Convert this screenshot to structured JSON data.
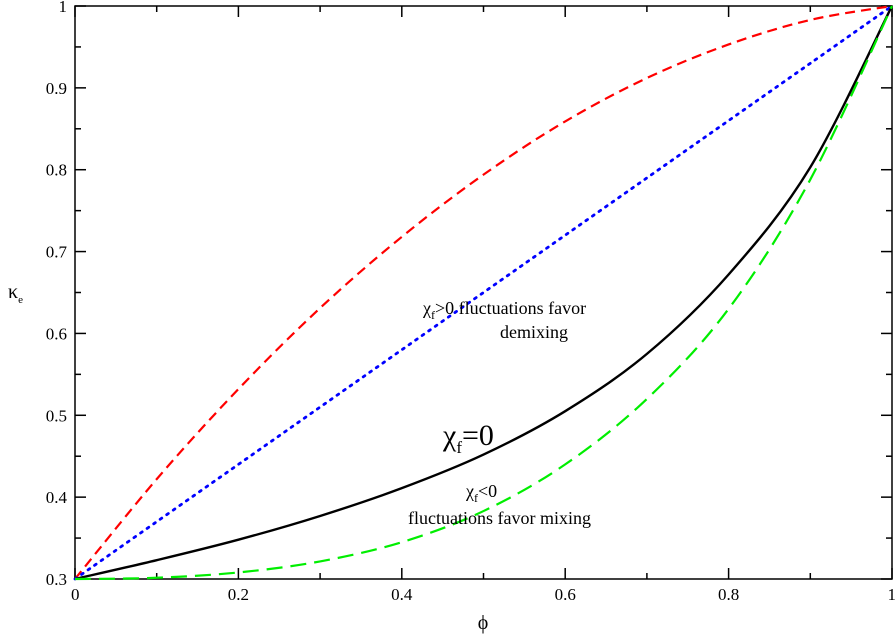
{
  "chart_data": {
    "type": "line",
    "xlabel": "ϕ",
    "ylabel_main": "κ",
    "ylabel_sub": "e",
    "xlim": [
      0,
      1
    ],
    "ylim": [
      0.3,
      1
    ],
    "xticks": [
      0,
      0.2,
      0.4,
      0.6,
      0.8,
      1
    ],
    "xtick_labels": [
      "0",
      "0.2",
      "0.4",
      "0.6",
      "0.8",
      "1"
    ],
    "yticks": [
      0.3,
      0.4,
      0.5,
      0.6,
      0.7,
      0.8,
      0.9,
      1
    ],
    "ytick_labels": [
      "0.3",
      "0.4",
      "0.5",
      "0.6",
      "0.7",
      "0.8",
      "0.9",
      "1"
    ],
    "grid": false,
    "x": [
      0,
      0.1,
      0.2,
      0.3,
      0.4,
      0.5,
      0.6,
      0.7,
      0.8,
      0.9,
      1.0
    ],
    "series": [
      {
        "color": "#ff0000",
        "dash": "dashed",
        "values": [
          0.3,
          0.422,
          0.532,
          0.631,
          0.718,
          0.794,
          0.859,
          0.912,
          0.953,
          0.983,
          1.0
        ]
      },
      {
        "color": "#0000ff",
        "dash": "dotted",
        "values": [
          0.3,
          0.37,
          0.44,
          0.51,
          0.58,
          0.65,
          0.72,
          0.79,
          0.86,
          0.93,
          1.0
        ]
      },
      {
        "color": "#000000",
        "dash": "solid",
        "values": [
          0.3,
          0.323,
          0.348,
          0.377,
          0.411,
          0.452,
          0.505,
          0.575,
          0.672,
          0.803,
          1.0
        ]
      },
      {
        "color": "#00ee00",
        "dash": "longdash",
        "values": [
          0.3,
          0.3015,
          0.308,
          0.3215,
          0.345,
          0.383,
          0.44,
          0.52,
          0.63,
          0.788,
          1.0
        ]
      }
    ]
  },
  "annotations": {
    "pos_chi": "χ",
    "pos_sub": "f",
    "pos_rest": ">0 fluctuations favor",
    "pos_line2": "demixing",
    "zero_chi": "χ",
    "zero_sub": "f",
    "zero_rest": "=0",
    "neg_chi": "χ",
    "neg_sub": "f",
    "neg_rest": "<0",
    "neg_line2": "fluctuations favor mixing"
  }
}
